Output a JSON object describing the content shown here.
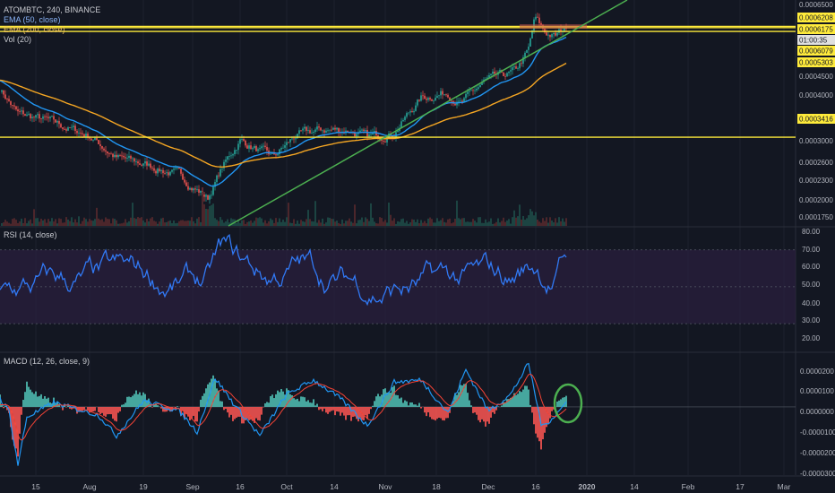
{
  "header": {
    "symbol_line": "ATOMBTC, 240, BINANCE",
    "ema50": "EMA (50, close)",
    "ema200": "EMA (200, close)",
    "vol": "Vol (20)"
  },
  "colors": {
    "background": "#131722",
    "grid": "#1e222d",
    "ema50": "#2196f3",
    "ema200": "#f5a623",
    "horizontal_levels": "#ffeb3b",
    "trendline": "#4caf50",
    "rsi_line": "#3179f5",
    "rsi_band": "#2a1f3d",
    "macd_line": "#2196f3",
    "signal_line": "#f44336",
    "hist_pos": "#4db6ac",
    "hist_neg": "#ef5350",
    "candle_up": "#26a69a",
    "candle_down": "#ef5350",
    "circle": "#4caf50"
  },
  "chart_data": [
    {
      "type": "candlestick",
      "title": "ATOMBTC, 240, BINANCE",
      "x_tick_labels": [
        "15",
        "Aug",
        "19",
        "Sep",
        "16",
        "Oct",
        "14",
        "Nov",
        "18",
        "Dec",
        "16",
        "2020",
        "14",
        "Feb",
        "17",
        "Mar"
      ],
      "y_tick_labels": [
        "0.0006500",
        "0.0006208",
        "0.0006175",
        "01:00:35",
        "0.0006079",
        "0.0005303",
        "0.0004500",
        "0.0004000",
        "0.0003416",
        "0.0003000",
        "0.0002600",
        "0.0002300",
        "0.0002000",
        "0.0001750"
      ],
      "price_range": [
        0.000168,
        0.00066
      ],
      "horizontal_levels": [
        0.0006208,
        0.0006175,
        0.0006079,
        0.0003416
      ],
      "series": [
        {
          "name": "EMA (50, close)"
        },
        {
          "name": "EMA (200, close)"
        },
        {
          "name": "Vol (20)"
        }
      ]
    },
    {
      "type": "line",
      "title": "RSI (14, close)",
      "y_tick_labels": [
        "80.00",
        "70.00",
        "60.00",
        "50.00",
        "40.00",
        "30.00",
        "20.00"
      ],
      "ylim": [
        15,
        82
      ],
      "band": [
        30,
        70
      ]
    },
    {
      "type": "line",
      "title": "MACD (12, 26, close, 9)",
      "y_tick_labels": [
        "0.0000200",
        "0.0000100",
        "0.0000000",
        "-0.0000100",
        "-0.0000200",
        "-0.0000300"
      ],
      "ylim": [
        -3.3e-05,
        2.6e-05
      ]
    }
  ]
}
